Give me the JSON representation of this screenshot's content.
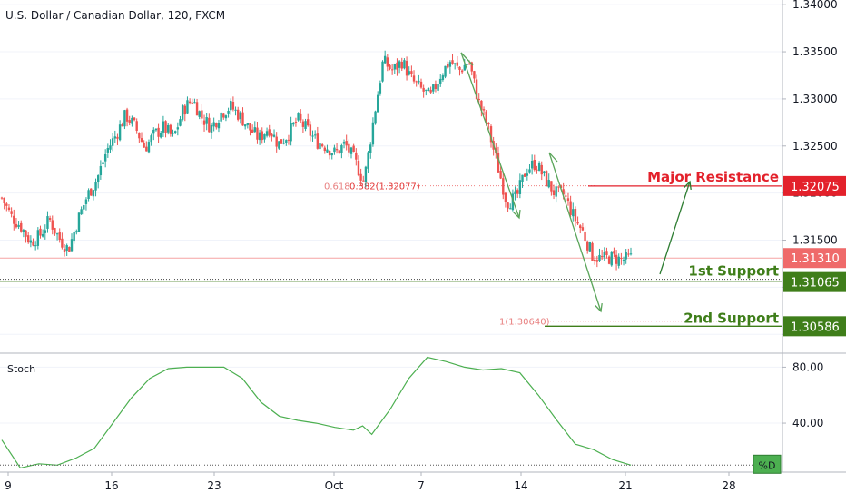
{
  "header": {
    "symbol_title": "U.S. Dollar / Canadian Dollar, 120, FXCM"
  },
  "colors": {
    "bull": "#26a69a",
    "bear": "#ef5350",
    "resistance": "#e3212b",
    "support": "#3f7e1a",
    "arrow": "#5aa55a",
    "stoch_line": "#4caf50",
    "last_price": "#ef6a6a"
  },
  "chart_data": [
    {
      "type": "candlestick",
      "title": "U.S. Dollar / Canadian Dollar, 120, FXCM",
      "ylim": [
        1.303,
        1.3405
      ],
      "y_ticks": [
        1.305,
        1.31,
        1.315,
        1.32,
        1.325,
        1.33,
        1.335,
        1.34
      ],
      "y_tick_labels": [
        "1.30500",
        "1.31000",
        "1.31500",
        "1.32000",
        "1.32500",
        "1.33000",
        "1.33500",
        "1.34000"
      ],
      "x_ticks": [
        "9",
        "16",
        "23",
        "Oct",
        "7",
        "14",
        "21",
        "28"
      ],
      "price_path": [
        [
          0,
          1.3195
        ],
        [
          1,
          1.3175
        ],
        [
          2,
          1.3165
        ],
        [
          3,
          1.3148
        ],
        [
          4,
          1.3155
        ],
        [
          5,
          1.3172
        ],
        [
          6,
          1.3152
        ],
        [
          7,
          1.314
        ],
        [
          8,
          1.3172
        ],
        [
          9,
          1.3198
        ],
        [
          10,
          1.3215
        ],
        [
          11,
          1.3245
        ],
        [
          12,
          1.3262
        ],
        [
          13,
          1.3283
        ],
        [
          14,
          1.327
        ],
        [
          15,
          1.3248
        ],
        [
          16,
          1.3262
        ],
        [
          17,
          1.327
        ],
        [
          18,
          1.3258
        ],
        [
          19,
          1.3288
        ],
        [
          20,
          1.33
        ],
        [
          21,
          1.328
        ],
        [
          22,
          1.327
        ],
        [
          23,
          1.3285
        ],
        [
          24,
          1.3292
        ],
        [
          25,
          1.3282
        ],
        [
          26,
          1.3268
        ],
        [
          27,
          1.3258
        ],
        [
          28,
          1.327
        ],
        [
          29,
          1.3252
        ],
        [
          30,
          1.3262
        ],
        [
          31,
          1.3278
        ],
        [
          32,
          1.3268
        ],
        [
          33,
          1.3255
        ],
        [
          34,
          1.325
        ],
        [
          35,
          1.3242
        ],
        [
          36,
          1.3252
        ],
        [
          37,
          1.3235
        ],
        [
          38,
          1.3212
        ],
        [
          39,
          1.3278
        ],
        [
          40,
          1.334
        ],
        [
          41,
          1.333
        ],
        [
          42,
          1.334
        ],
        [
          43,
          1.332
        ],
        [
          44,
          1.331
        ],
        [
          45,
          1.3302
        ],
        [
          46,
          1.3325
        ],
        [
          47,
          1.334
        ],
        [
          48,
          1.333
        ],
        [
          49,
          1.334
        ],
        [
          50,
          1.3298
        ],
        [
          51,
          1.327
        ],
        [
          52,
          1.323
        ],
        [
          53,
          1.319
        ],
        [
          54,
          1.3195
        ],
        [
          55,
          1.3225
        ],
        [
          56,
          1.3232
        ],
        [
          57,
          1.3215
        ],
        [
          58,
          1.32
        ],
        [
          59,
          1.3198
        ],
        [
          60,
          1.3175
        ],
        [
          61,
          1.3158
        ],
        [
          62,
          1.3133
        ],
        [
          63,
          1.313
        ],
        [
          64,
          1.3132
        ],
        [
          65,
          1.3129
        ],
        [
          66,
          1.3131
        ]
      ],
      "fib_levels": [
        {
          "label": "0.618",
          "value": 1.32077
        },
        {
          "label": "0.382(1.32077)",
          "value": 1.32077
        },
        {
          "label": "1(1.30640)",
          "value": 1.3064
        }
      ],
      "levels": [
        {
          "name": "Major Resistance",
          "value": 1.32075,
          "label": "1.32075",
          "kind": "resistance"
        },
        {
          "name": "1st Support",
          "value": 1.31065,
          "label": "1.31065",
          "kind": "support"
        },
        {
          "name": "2nd Support",
          "value": 1.30586,
          "label": "1.30586",
          "kind": "support"
        }
      ],
      "last_price": {
        "value": 1.3131,
        "label": "1.31310"
      },
      "partial_tick_label": "1.30500"
    },
    {
      "type": "line",
      "title": "Stoch",
      "ylim": [
        5,
        90
      ],
      "y_ticks": [
        40,
        80
      ],
      "y_tick_labels": [
        "40.00",
        "80.00"
      ],
      "series": [
        {
          "name": "%D",
          "values": [
            [
              0,
              28
            ],
            [
              2,
              8
            ],
            [
              4,
              11
            ],
            [
              6,
              10
            ],
            [
              8,
              15
            ],
            [
              10,
              22
            ],
            [
              12,
              40
            ],
            [
              14,
              58
            ],
            [
              16,
              72
            ],
            [
              18,
              79
            ],
            [
              20,
              80
            ],
            [
              22,
              80
            ],
            [
              24,
              80
            ],
            [
              26,
              72
            ],
            [
              28,
              55
            ],
            [
              30,
              45
            ],
            [
              32,
              42
            ],
            [
              34,
              40
            ],
            [
              36,
              37
            ],
            [
              38,
              35
            ],
            [
              39,
              38
            ],
            [
              40,
              32
            ],
            [
              42,
              50
            ],
            [
              44,
              72
            ],
            [
              46,
              87
            ],
            [
              48,
              84
            ],
            [
              50,
              80
            ],
            [
              52,
              78
            ],
            [
              54,
              79
            ],
            [
              56,
              76
            ],
            [
              58,
              60
            ],
            [
              60,
              42
            ],
            [
              62,
              25
            ],
            [
              64,
              21
            ],
            [
              66,
              14
            ],
            [
              68,
              10
            ]
          ]
        }
      ]
    }
  ]
}
